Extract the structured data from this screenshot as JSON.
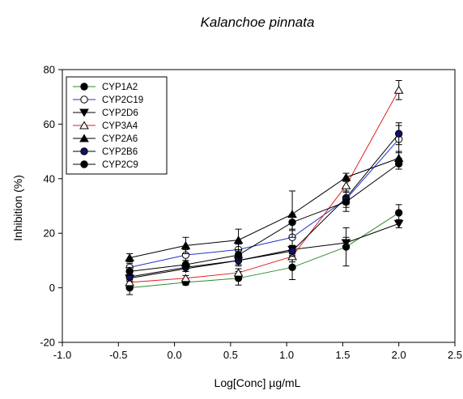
{
  "chart_data": {
    "type": "line",
    "title": "Kalanchoe pinnata",
    "xlabel": "Log[Conc] µg/mL",
    "ylabel": "Inhibition (%)",
    "xlim": [
      -1.0,
      2.5
    ],
    "ylim": [
      -20,
      80
    ],
    "xticks": [
      -1.0,
      -0.5,
      0.0,
      0.5,
      1.0,
      1.5,
      2.0,
      2.5
    ],
    "xtick_labels": [
      "-1.0",
      "-0.5",
      "0.0",
      "0.5",
      "1.0",
      "1.5",
      "2.0",
      "2.5"
    ],
    "yticks": [
      -20,
      0,
      20,
      40,
      60,
      80
    ],
    "ytick_labels": [
      "-20",
      "0",
      "20",
      "40",
      "60",
      "80"
    ],
    "grid": false,
    "legend_position": "top-left",
    "x": [
      -0.4,
      0.1,
      0.57,
      1.05,
      1.53,
      2.0
    ],
    "series": [
      {
        "name": "CYP1A2",
        "values": [
          0,
          2,
          3.5,
          7.5,
          15,
          27.5
        ],
        "errors": [
          2.5,
          1,
          2.5,
          4.5,
          7,
          3
        ],
        "color": "#2e8b2e",
        "marker": "filled-circle"
      },
      {
        "name": "CYP2C19",
        "values": [
          7.5,
          12,
          14,
          18.5,
          32.5,
          54.5
        ],
        "errors": [
          1.5,
          2,
          2,
          3,
          4.5,
          5
        ],
        "color": "#2233cc",
        "marker": "open-circle"
      },
      {
        "name": "CYP2D6",
        "values": [
          3.5,
          7,
          10,
          14,
          16.5,
          23.5
        ],
        "errors": [
          1,
          1,
          1.5,
          1.5,
          2,
          1.5
        ],
        "color": "#000000",
        "marker": "filled-triangle-down"
      },
      {
        "name": "CYP3A4",
        "values": [
          2,
          3.5,
          5.5,
          11.5,
          37.5,
          72.5
        ],
        "errors": [
          1,
          1,
          1.5,
          2,
          2.5,
          3.5
        ],
        "color": "#e02020",
        "marker": "open-triangle-up"
      },
      {
        "name": "CYP2A6",
        "values": [
          11,
          15.5,
          17.5,
          27,
          40.5,
          47.5
        ],
        "errors": [
          1.5,
          3,
          4,
          8.5,
          1.5,
          2.5
        ],
        "color": "#000000",
        "marker": "filled-triangle-up"
      },
      {
        "name": "CYP2B6",
        "values": [
          4,
          7.5,
          10,
          13.5,
          33,
          56.5
        ],
        "errors": [
          1.5,
          1.5,
          2,
          2,
          2.5,
          4
        ],
        "color": "#000000",
        "marker": "navy-circle"
      },
      {
        "name": "CYP2C9",
        "values": [
          6,
          8.5,
          12,
          24,
          31.5,
          45.5
        ],
        "errors": [
          1.5,
          1.5,
          2,
          3,
          2,
          2
        ],
        "color": "#000000",
        "marker": "filled-circle"
      }
    ]
  }
}
